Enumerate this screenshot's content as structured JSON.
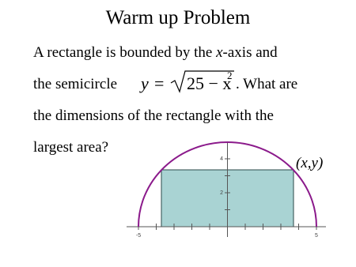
{
  "header": {
    "title": "Warm up Problem"
  },
  "problem": {
    "line1": {
      "before": "A rectangle is bounded by the ",
      "var": "x",
      "after": "-axis and"
    },
    "line2": {
      "before": "the semicircle",
      "equation": {
        "lhs": "y",
        "equals": "=",
        "radicand": "25 − x",
        "exponent": "2"
      },
      "after": ". What are"
    },
    "line3": "the dimensions of the rectangle with the",
    "line4": "largest area?"
  },
  "graph": {
    "y_tick_labels": [
      "4",
      "2"
    ],
    "x_tick_labels": [
      "-5",
      "5"
    ],
    "point_label": "(x,y)"
  }
}
